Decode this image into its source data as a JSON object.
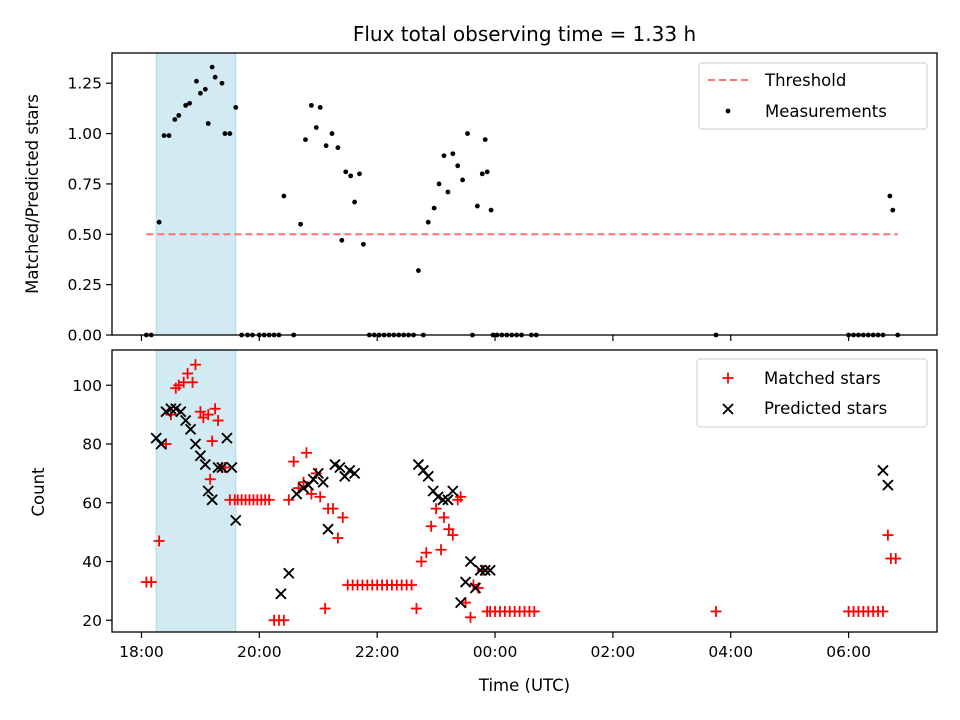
{
  "colors": {
    "shade": "#add8e6",
    "threshold": "#ff7070",
    "measurement": "#000000",
    "matched": "#ff0000",
    "predicted": "#000000"
  },
  "chart_data": [
    {
      "type": "scatter",
      "title": "Flux total observing time = 1.33 h",
      "xlabel": "",
      "ylabel": "Matched/Predicted stars",
      "xlim": [
        "17:30",
        "07:30"
      ],
      "ylim": [
        0,
        1.4
      ],
      "yticks": [
        0.0,
        0.25,
        0.5,
        0.75,
        1.0,
        1.25
      ],
      "ytick_labels": [
        "0.00",
        "0.25",
        "0.50",
        "0.75",
        "1.00",
        "1.25"
      ],
      "shaded_interval": [
        "18:15",
        "19:36"
      ],
      "legend": {
        "position": "upper right",
        "entries": [
          "Threshold",
          "Measurements"
        ]
      },
      "grid": false,
      "series": [
        {
          "name": "Threshold",
          "kind": "dashed-line",
          "x": [
            "18:05",
            "06:50"
          ],
          "y": [
            0.5,
            0.5
          ]
        },
        {
          "name": "Measurements",
          "kind": "dots",
          "x": [
            "18:05",
            "18:10",
            "18:18",
            "18:23",
            "18:28",
            "18:34",
            "18:38",
            "18:45",
            "18:49",
            "18:56",
            "19:00",
            "19:05",
            "19:08",
            "19:12",
            "19:15",
            "19:22",
            "19:25",
            "19:30",
            "19:36",
            "19:42",
            "19:48",
            "19:53",
            "20:00",
            "20:05",
            "20:10",
            "20:15",
            "20:20",
            "20:25",
            "20:35",
            "20:42",
            "20:47",
            "20:53",
            "20:58",
            "21:02",
            "21:08",
            "21:14",
            "21:20",
            "21:24",
            "21:28",
            "21:33",
            "21:37",
            "21:42",
            "21:46",
            "21:52",
            "21:57",
            "22:02",
            "22:07",
            "22:12",
            "22:17",
            "22:22",
            "22:27",
            "22:32",
            "22:37",
            "22:42",
            "22:47",
            "22:52",
            "22:58",
            "23:03",
            "23:08",
            "23:12",
            "23:17",
            "23:22",
            "23:27",
            "23:32",
            "23:37",
            "23:42",
            "23:47",
            "23:50",
            "23:52",
            "23:56",
            "23:58",
            "00:02",
            "00:07",
            "00:12",
            "00:17",
            "00:22",
            "00:27",
            "00:37",
            "00:42",
            "03:45",
            "06:00",
            "06:05",
            "06:10",
            "06:15",
            "06:20",
            "06:25",
            "06:30",
            "06:35",
            "06:42",
            "06:45",
            "06:50"
          ],
          "y": [
            0,
            0,
            0.56,
            0.99,
            0.99,
            1.07,
            1.09,
            1.14,
            1.15,
            1.26,
            1.2,
            1.22,
            1.05,
            1.33,
            1.28,
            1.25,
            1.0,
            1.0,
            1.13,
            0,
            0,
            0,
            0,
            0,
            0,
            0,
            0,
            0.69,
            0,
            0.55,
            0.97,
            1.14,
            1.03,
            1.13,
            0.94,
            1.0,
            0.93,
            0.47,
            0.81,
            0.79,
            0.66,
            0.8,
            0.45,
            0,
            0,
            0,
            0,
            0,
            0,
            0,
            0,
            0,
            0,
            0.32,
            0,
            0.56,
            0.63,
            0.75,
            0.89,
            0.71,
            0.9,
            0.84,
            0.77,
            1.0,
            0,
            0.64,
            0.8,
            0.97,
            0.81,
            0.62,
            0,
            0,
            0,
            0,
            0,
            0,
            0,
            0,
            0,
            0,
            0,
            0,
            0,
            0,
            0,
            0,
            0,
            0,
            0.69,
            0.62,
            0
          ]
        }
      ]
    },
    {
      "type": "scatter",
      "title": "",
      "xlabel": "Time (UTC)",
      "ylabel": "Count",
      "xlim": [
        "17:30",
        "07:30"
      ],
      "ylim": [
        16,
        112
      ],
      "xticks": [
        "18:00",
        "20:00",
        "22:00",
        "00:00",
        "02:00",
        "04:00",
        "06:00"
      ],
      "yticks": [
        20,
        40,
        60,
        80,
        100
      ],
      "ytick_labels": [
        "20",
        "40",
        "60",
        "80",
        "100"
      ],
      "shaded_interval": [
        "18:15",
        "19:36"
      ],
      "legend": {
        "position": "upper right",
        "entries": [
          "Matched stars",
          "Predicted stars"
        ]
      },
      "grid": false,
      "series": [
        {
          "name": "Matched stars",
          "kind": "plus",
          "x": [
            "18:05",
            "18:10",
            "18:18",
            "18:25",
            "18:30",
            "18:35",
            "18:38",
            "18:43",
            "18:47",
            "18:52",
            "18:55",
            "19:00",
            "19:03",
            "19:08",
            "19:10",
            "19:12",
            "19:15",
            "19:18",
            "19:22",
            "19:25",
            "19:30",
            "19:35",
            "19:38",
            "19:42",
            "19:46",
            "19:50",
            "19:54",
            "19:58",
            "20:02",
            "20:06",
            "20:10",
            "20:15",
            "20:20",
            "20:25",
            "20:30",
            "20:35",
            "20:40",
            "20:45",
            "20:48",
            "20:53",
            "20:58",
            "21:02",
            "21:07",
            "21:10",
            "21:15",
            "21:20",
            "21:25",
            "21:30",
            "21:35",
            "21:40",
            "21:45",
            "21:50",
            "21:55",
            "22:00",
            "22:05",
            "22:10",
            "22:15",
            "22:20",
            "22:25",
            "22:30",
            "22:35",
            "22:40",
            "22:45",
            "22:50",
            "22:55",
            "23:00",
            "23:05",
            "23:08",
            "23:13",
            "23:17",
            "23:22",
            "23:25",
            "23:30",
            "23:35",
            "23:38",
            "23:43",
            "23:47",
            "23:52",
            "23:55",
            "00:00",
            "00:05",
            "00:10",
            "00:15",
            "00:20",
            "00:25",
            "00:30",
            "00:35",
            "00:40",
            "03:45",
            "06:00",
            "06:05",
            "06:10",
            "06:15",
            "06:20",
            "06:25",
            "06:30",
            "06:35",
            "06:40",
            "06:43",
            "06:48"
          ],
          "y": [
            33,
            33,
            47,
            80,
            90,
            99,
            100,
            101,
            104,
            101,
            107,
            91,
            89,
            90,
            68,
            81,
            92,
            88,
            72,
            72,
            61,
            61,
            61,
            61,
            61,
            61,
            61,
            61,
            61,
            61,
            61,
            20,
            20,
            20,
            61,
            74,
            65,
            67,
            77,
            63,
            70,
            62,
            24,
            58,
            58,
            48,
            55,
            32,
            32,
            32,
            32,
            32,
            32,
            32,
            32,
            32,
            32,
            32,
            32,
            32,
            32,
            24,
            40,
            43,
            52,
            58,
            44,
            55,
            51,
            49,
            61,
            62,
            26,
            21,
            32,
            31,
            37,
            23,
            23,
            23,
            23,
            23,
            23,
            23,
            23,
            23,
            23,
            23,
            23,
            23,
            23,
            23,
            23,
            23,
            23,
            23,
            23,
            49,
            41,
            41
          ]
        },
        {
          "name": "Predicted stars",
          "kind": "x",
          "x": [
            "18:15",
            "18:20",
            "18:25",
            "18:30",
            "18:35",
            "18:40",
            "18:45",
            "18:50",
            "18:55",
            "19:00",
            "19:05",
            "19:08",
            "19:12",
            "19:18",
            "19:22",
            "19:27",
            "19:32",
            "19:36",
            "20:22",
            "20:30",
            "20:38",
            "20:45",
            "20:50",
            "20:55",
            "21:00",
            "21:05",
            "21:10",
            "21:17",
            "21:22",
            "21:27",
            "21:32",
            "21:37",
            "22:42",
            "22:47",
            "22:52",
            "22:57",
            "23:02",
            "23:07",
            "23:12",
            "23:17",
            "23:25",
            "23:30",
            "23:35",
            "23:40",
            "23:45",
            "23:50",
            "23:55",
            "06:35",
            "06:40"
          ],
          "y": [
            82,
            80,
            91,
            92,
            92,
            91,
            88,
            85,
            80,
            76,
            73,
            64,
            61,
            72,
            72,
            82,
            72,
            54,
            29,
            36,
            63,
            65,
            66,
            68,
            70,
            67,
            51,
            73,
            72,
            69,
            71,
            70,
            73,
            71,
            69,
            64,
            62,
            61,
            61,
            64,
            26,
            33,
            40,
            31,
            37,
            37,
            37,
            71,
            66
          ]
        }
      ]
    }
  ]
}
